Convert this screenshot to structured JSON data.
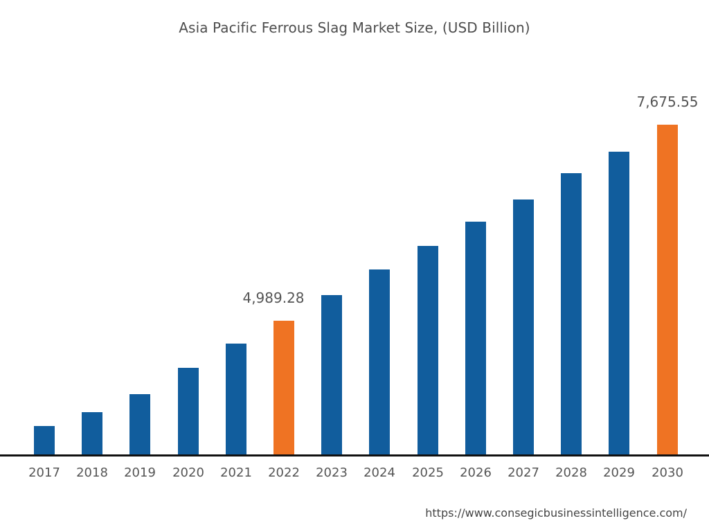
{
  "chart_data": {
    "type": "bar",
    "title": "Asia Pacific Ferrous Slag Market Size, (USD Billion)",
    "xlabel": "",
    "ylabel": "",
    "categories": [
      "2017",
      "2018",
      "2019",
      "2020",
      "2021",
      "2022",
      "2023",
      "2024",
      "2025",
      "2026",
      "2027",
      "2028",
      "2029",
      "2030"
    ],
    "values": [
      3547,
      3736,
      3983,
      4344,
      4676,
      4989.28,
      5340,
      5692,
      6014,
      6347,
      6650,
      7011,
      7305,
      7675.55
    ],
    "highlighted": [
      "2022",
      "2030"
    ],
    "data_labels": [
      {
        "category": "2022",
        "text": "4,989.28"
      },
      {
        "category": "2030",
        "text": "7,675.55"
      }
    ],
    "y_axis_visible": false,
    "grid": false,
    "legend": null,
    "colors": {
      "default": "#115D9D",
      "highlight": "#EF7323"
    }
  },
  "source": {
    "url_text": "https://www.consegicbusinessintelligence.com/"
  }
}
